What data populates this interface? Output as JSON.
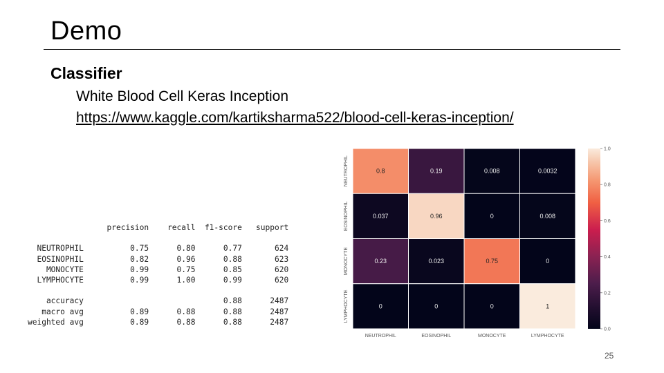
{
  "slide": {
    "title": "Demo",
    "subheading": "Classifier",
    "description": "White Blood Cell Keras Inception",
    "link": "https://www.kaggle.com/kartiksharma522/blood-cell-keras-inception/",
    "page_number": "25"
  },
  "report": {
    "header": [
      "precision",
      "recall",
      "f1-score",
      "support"
    ],
    "rows": [
      {
        "label": "NEUTROPHIL",
        "precision": "0.75",
        "recall": "0.80",
        "f1": "0.77",
        "support": "624"
      },
      {
        "label": "EOSINOPHIL",
        "precision": "0.82",
        "recall": "0.96",
        "f1": "0.88",
        "support": "623"
      },
      {
        "label": "MONOCYTE",
        "precision": "0.99",
        "recall": "0.75",
        "f1": "0.85",
        "support": "620"
      },
      {
        "label": "LYMPHOCYTE",
        "precision": "0.99",
        "recall": "1.00",
        "f1": "0.99",
        "support": "620"
      }
    ],
    "summary": [
      {
        "label": "accuracy",
        "precision": "",
        "recall": "",
        "f1": "0.88",
        "support": "2487"
      },
      {
        "label": "macro avg",
        "precision": "0.89",
        "recall": "0.88",
        "f1": "0.88",
        "support": "2487"
      },
      {
        "label": "weighted avg",
        "precision": "0.89",
        "recall": "0.88",
        "f1": "0.88",
        "support": "2487"
      }
    ]
  },
  "chart_data": {
    "type": "heatmap",
    "x_labels": [
      "NEUTROPHIL",
      "EOSINOPHIL",
      "MONOCYTE",
      "LYMPHOCYTE"
    ],
    "y_labels": [
      "NEUTROPHIL",
      "EOSINOPHIL",
      "MONOCYTE",
      "LYMPHOCYTE"
    ],
    "values": [
      [
        0.8,
        0.19,
        0.008,
        0.0032
      ],
      [
        0.037,
        0.96,
        0,
        0.008
      ],
      [
        0.23,
        0.023,
        0.75,
        0
      ],
      [
        0,
        0,
        0,
        1
      ]
    ],
    "value_labels": [
      [
        "0.8",
        "0.19",
        "0.008",
        "0.0032"
      ],
      [
        "0.037",
        "0.96",
        "0",
        "0.008"
      ],
      [
        "0.23",
        "0.023",
        "0.75",
        "0"
      ],
      [
        "0",
        "0",
        "0",
        "1"
      ]
    ],
    "colorbar_ticks": [
      "1.0",
      "0.8",
      "0.6",
      "0.4",
      "0.2",
      "0.0"
    ],
    "colorbar_range": [
      0,
      1
    ],
    "colormap": "rocket"
  }
}
